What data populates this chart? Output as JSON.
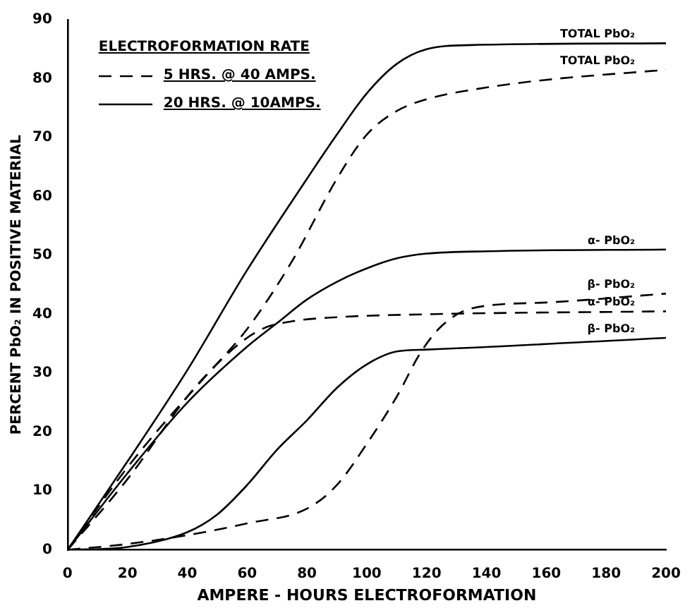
{
  "chart_data": {
    "type": "line",
    "xlabel": "AMPERE - HOURS ELECTROFORMATION",
    "ylabel": "PERCENT PbO₂ IN POSITIVE MATERIAL",
    "legend_title": "ELECTROFORMATION RATE",
    "legend": "top left",
    "marker": "none",
    "annotations": [
      "TOTAL PbO₂",
      "TOTAL PbO₂",
      "α- PbO₂",
      "β- PbO₂",
      "α- PbO₂",
      "β- PbO₂"
    ],
    "xlim": [
      0,
      200
    ],
    "xticks": [
      0,
      20,
      40,
      60,
      80,
      100,
      120,
      140,
      160,
      180,
      200
    ],
    "ylim": [
      0,
      90
    ],
    "yticks": [
      0,
      10,
      20,
      30,
      40,
      50,
      60,
      70,
      80,
      90
    ],
    "grid": false,
    "series": [
      {
        "name": "5 HRS. @ 40 AMPS.",
        "color": "#000000",
        "line_style": "dashed",
        "x": [
          0,
          20,
          40,
          60,
          75,
          90,
          100,
          110,
          120,
          140,
          160,
          200
        ],
        "values": [
          0,
          12,
          26,
          37.5,
          49,
          63,
          70.5,
          74.5,
          76.5,
          78.5,
          79.8,
          81.5
        ]
      },
      {
        "name": "20 HRS. @ 10AMPS.",
        "color": "#000000",
        "line_style": "solid",
        "x": [
          0,
          20,
          40,
          60,
          80,
          90,
          100,
          110,
          120,
          135,
          200
        ],
        "values": [
          0,
          15,
          30.5,
          47.5,
          63,
          70.5,
          77.5,
          82.5,
          85,
          85.7,
          86
        ]
      },
      {
        "color": "#000000",
        "line_style": "solid",
        "x": [
          0,
          20,
          40,
          60,
          70,
          80,
          90,
          100,
          110,
          120,
          140,
          200
        ],
        "values": [
          0,
          13,
          25,
          34.5,
          38.5,
          42.5,
          45.5,
          47.8,
          49.5,
          50.3,
          50.7,
          51
        ]
      },
      {
        "color": "#000000",
        "line_style": "dashed",
        "x": [
          0,
          20,
          40,
          60,
          80,
          90,
          100,
          110,
          118,
          125,
          135,
          160,
          200
        ],
        "values": [
          0,
          1,
          2.5,
          4.5,
          7,
          11,
          18,
          26,
          33.5,
          38,
          41,
          42,
          43.5
        ]
      },
      {
        "color": "#000000",
        "line_style": "dashed",
        "x": [
          0,
          20,
          40,
          55,
          65,
          75,
          90,
          120,
          200
        ],
        "values": [
          0,
          14,
          26,
          34,
          37.5,
          38.8,
          39.5,
          40,
          40.5
        ]
      },
      {
        "color": "#000000",
        "line_style": "solid",
        "x": [
          0,
          20,
          40,
          50,
          60,
          70,
          80,
          90,
          100,
          110,
          120,
          200
        ],
        "values": [
          0,
          0.5,
          3,
          6,
          11,
          17,
          22,
          27.5,
          31.5,
          33.7,
          34,
          36
        ]
      }
    ]
  }
}
